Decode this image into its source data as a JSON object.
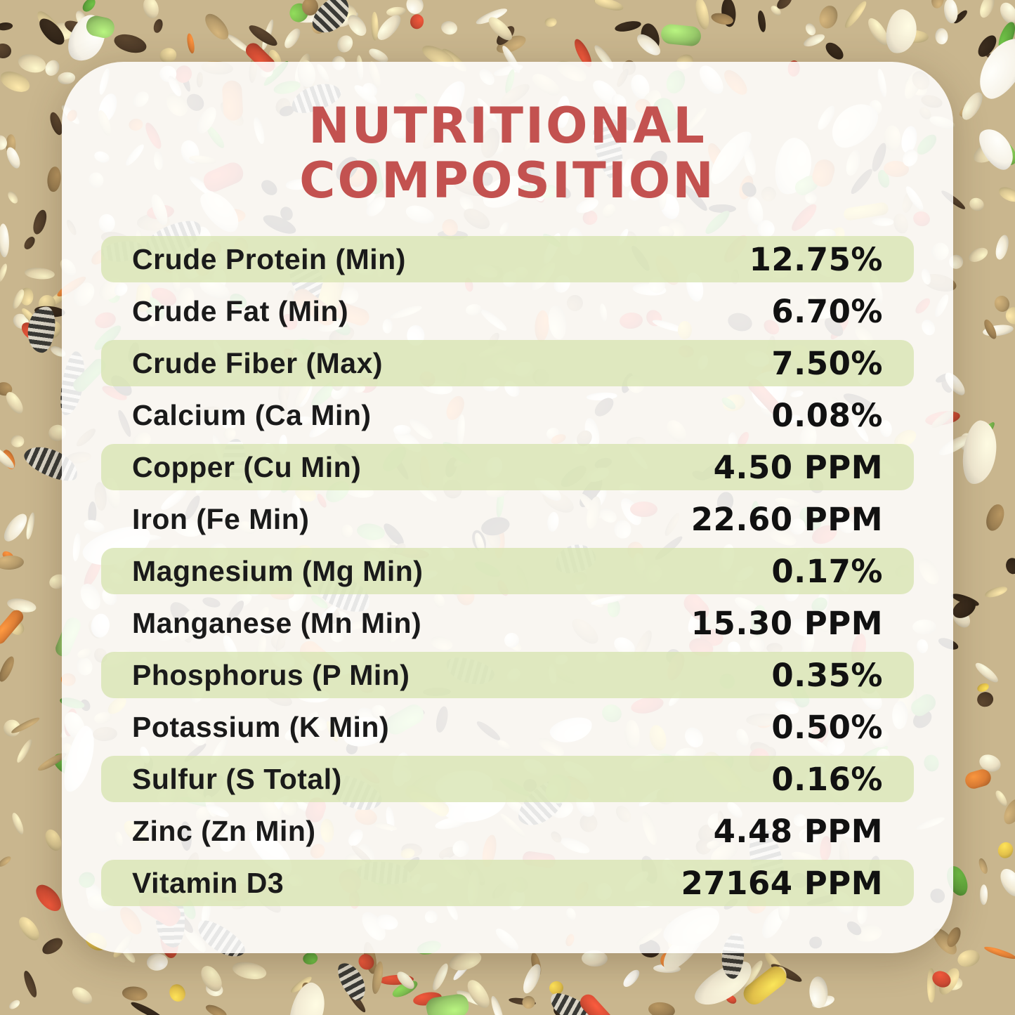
{
  "title": {
    "line1": "NUTRITIONAL",
    "line2": "COMPOSITION"
  },
  "table": {
    "rows": [
      {
        "label": "Crude Protein (Min)",
        "value": "12.75%"
      },
      {
        "label": "Crude Fat (Min)",
        "value": "6.70%"
      },
      {
        "label": "Crude Fiber (Max)",
        "value": "7.50%"
      },
      {
        "label": "Calcium (Ca Min)",
        "value": "0.08%"
      },
      {
        "label": "Copper (Cu Min)",
        "value": "4.50 PPM"
      },
      {
        "label": "Iron (Fe Min)",
        "value": "22.60 PPM"
      },
      {
        "label": "Magnesium (Mg Min)",
        "value": "0.17%"
      },
      {
        "label": "Manganese (Mn Min)",
        "value": "15.30 PPM"
      },
      {
        "label": "Phosphorus (P Min)",
        "value": "0.35%"
      },
      {
        "label": "Potassium (K Min)",
        "value": "0.50%"
      },
      {
        "label": "Sulfur (S Total)",
        "value": "0.16%"
      },
      {
        "label": "Zinc (Zn Min)",
        "value": "4.48 PPM"
      },
      {
        "label": "Vitamin D3",
        "value": "27164 PPM"
      }
    ]
  },
  "colors": {
    "title_red": "#C35250",
    "row_green": "#D7E4B1",
    "card_background": "#FFFFFF",
    "text_black": "#1A1A1A",
    "background_base": "#C9B68E"
  },
  "background": {
    "palette": [
      "#EADFC2",
      "#E2D3AC",
      "#D9C692",
      "#F1E9D2",
      "#B59A6A",
      "#9C7F52",
      "#4E3B28",
      "#332619",
      "#7CBB4E",
      "#5FA53C",
      "#CE4B33",
      "#DD7E35",
      "#E3C14B",
      "#F7F3E8"
    ]
  }
}
